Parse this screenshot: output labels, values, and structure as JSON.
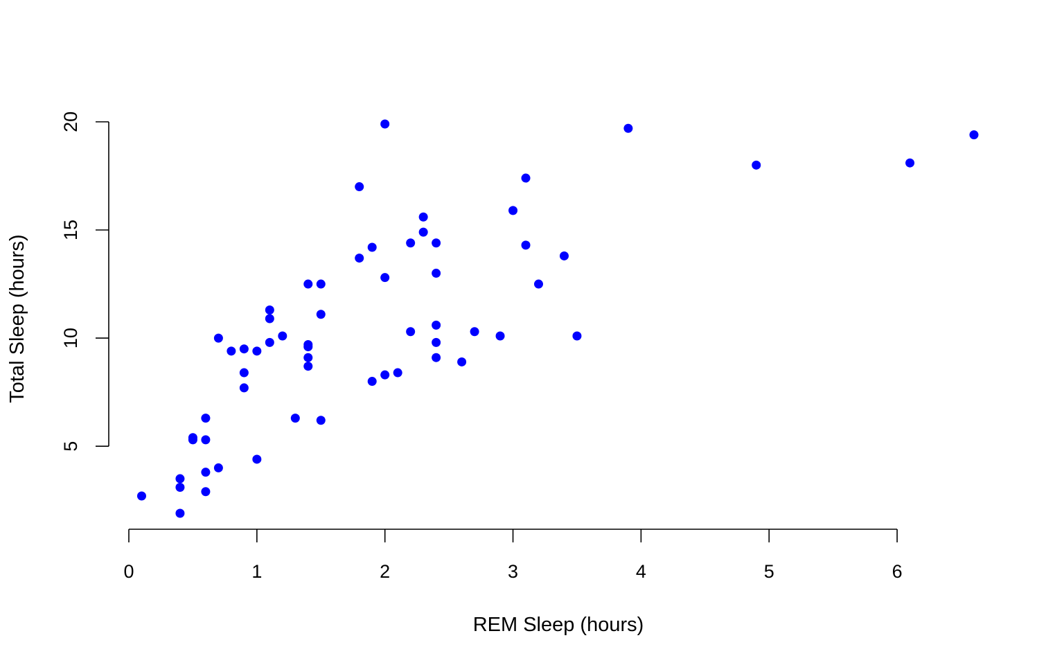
{
  "chart_data": {
    "type": "scatter",
    "title": "",
    "xlabel": "REM Sleep (hours)",
    "ylabel": "Total Sleep (hours)",
    "xlim": [
      0,
      6.6
    ],
    "ylim": [
      1.9,
      19.9
    ],
    "x_ticks": [
      "0",
      "1",
      "2",
      "3",
      "4",
      "5",
      "6"
    ],
    "y_ticks": [
      "5",
      "10",
      "15",
      "20"
    ],
    "grid": false,
    "legend": "none",
    "point_color": "#0000ff",
    "series": [
      {
        "x": [
          0.1,
          0.4,
          0.4,
          0.4,
          0.5,
          0.5,
          0.6,
          0.6,
          0.6,
          0.6,
          0.7,
          0.7,
          0.8,
          0.9,
          0.9,
          0.9,
          1.0,
          1.0,
          1.1,
          1.1,
          1.1,
          1.2,
          1.3,
          1.4,
          1.4,
          1.4,
          1.4,
          1.4,
          1.5,
          1.5,
          1.5,
          1.8,
          1.8,
          1.9,
          1.9,
          2.0,
          2.0,
          2.0,
          2.1,
          2.2,
          2.2,
          2.3,
          2.3,
          2.4,
          2.4,
          2.4,
          2.4,
          2.4,
          2.6,
          2.7,
          2.9,
          3.0,
          3.1,
          3.1,
          3.2,
          3.4,
          3.5,
          3.9,
          4.9,
          6.1,
          6.6
        ],
        "y": [
          2.7,
          3.5,
          3.1,
          1.9,
          5.4,
          5.3,
          6.3,
          5.3,
          3.8,
          2.9,
          10.0,
          4.0,
          9.4,
          9.5,
          8.4,
          7.7,
          9.4,
          4.4,
          11.3,
          10.9,
          9.8,
          10.1,
          6.3,
          12.5,
          9.7,
          9.6,
          9.1,
          8.7,
          12.5,
          11.1,
          6.2,
          17.0,
          13.7,
          14.2,
          8.0,
          19.9,
          12.8,
          8.3,
          8.4,
          14.4,
          10.3,
          15.6,
          14.9,
          14.4,
          13.0,
          10.6,
          9.8,
          9.1,
          8.9,
          10.3,
          10.1,
          15.9,
          17.4,
          14.3,
          12.5,
          13.8,
          10.1,
          19.7,
          18.0,
          18.1,
          19.4
        ]
      }
    ]
  }
}
